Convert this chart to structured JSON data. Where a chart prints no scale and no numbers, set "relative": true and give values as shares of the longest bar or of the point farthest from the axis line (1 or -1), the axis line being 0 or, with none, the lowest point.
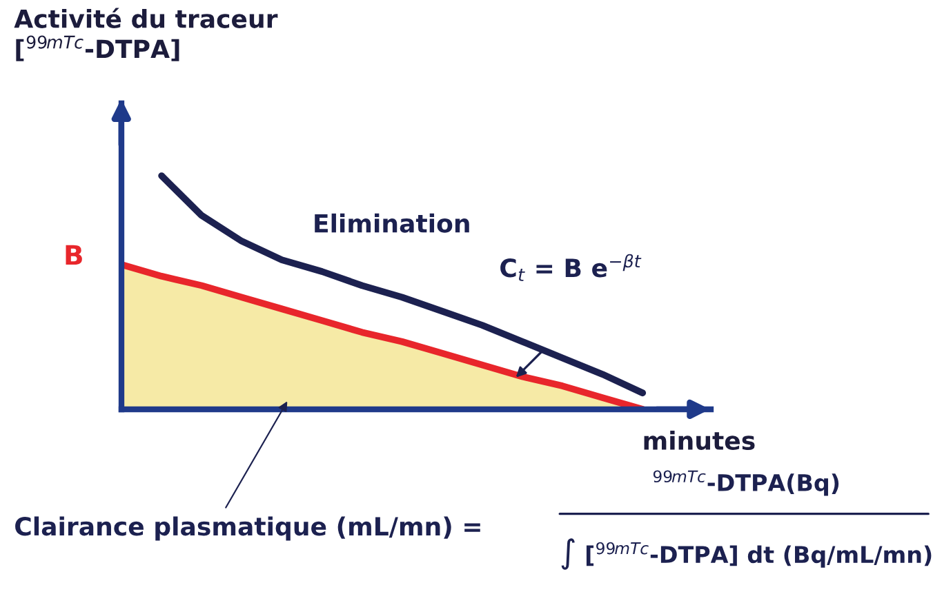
{
  "chart_data": {
    "type": "line",
    "relative": true,
    "ylabel": "Activité du traceur\n[$^{99mTc}$-DTPA]",
    "xlabel": "minutes",
    "categories": [
      null,
      null,
      null,
      null,
      null,
      null,
      null,
      null,
      null,
      null,
      null,
      null,
      null,
      null,
      null
    ],
    "series": [
      {
        "type": "area",
        "color": "#e8262b",
        "values": [
          0.62,
          0.57,
          0.53,
          0.48,
          0.43,
          0.38,
          0.33,
          0.29,
          0.24,
          0.19,
          0.14,
          0.1,
          0.05,
          0.0,
          null
        ]
      },
      {
        "color": "#1c2150",
        "values": [
          null,
          1.0,
          0.83,
          0.72,
          0.64,
          0.59,
          0.53,
          0.48,
          0.42,
          0.36,
          0.29,
          0.22,
          0.15,
          0.07,
          null
        ]
      }
    ],
    "annotations": [
      "B",
      "Elimination",
      "C$_{t}$ = B e$^{−βt}$",
      "Clairance plasmatique (mL/mn) =",
      "$^{99mTc}$-DTPA(Bq)",
      "∫ [$^{99mTc}$-DTPA] dt (Bq/mL/mn)"
    ],
    "legend": false,
    "marker": "none",
    "line_style": "solid"
  }
}
